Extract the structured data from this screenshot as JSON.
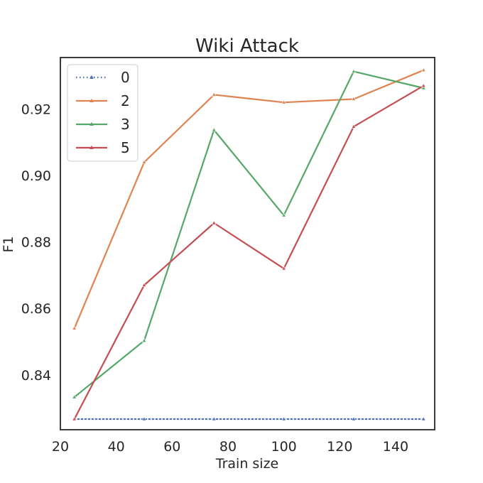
{
  "chart_data": {
    "type": "line",
    "title": "Wiki Attack",
    "xlabel": "Train size",
    "ylabel": "F1",
    "x": [
      25,
      50,
      75,
      100,
      125,
      150
    ],
    "xlim": [
      20,
      154
    ],
    "ylim": [
      0.8235,
      0.9355
    ],
    "xticks": [
      20,
      40,
      60,
      80,
      100,
      120,
      140
    ],
    "yticks": [
      0.84,
      0.86,
      0.88,
      0.9,
      0.92
    ],
    "ytick_labels": [
      "0.84",
      "0.86",
      "0.88",
      "0.90",
      "0.92"
    ],
    "grid": false,
    "legend_position": "top-left",
    "series": [
      {
        "name": "0",
        "color": "#4c72b0",
        "dash": "dotted",
        "values": [
          0.8267,
          0.8267,
          0.8267,
          0.8267,
          0.8267,
          0.8267
        ]
      },
      {
        "name": "2",
        "color": "#dd8452",
        "dash": "solid",
        "values": [
          0.854,
          0.904,
          0.9243,
          0.922,
          0.923,
          0.9317
        ]
      },
      {
        "name": "3",
        "color": "#55a868",
        "dash": "solid",
        "values": [
          0.8333,
          0.8503,
          0.9137,
          0.888,
          0.9313,
          0.9263
        ]
      },
      {
        "name": "5",
        "color": "#c44e52",
        "dash": "solid",
        "values": [
          0.8267,
          0.867,
          0.8857,
          0.872,
          0.9147,
          0.927
        ]
      }
    ]
  }
}
